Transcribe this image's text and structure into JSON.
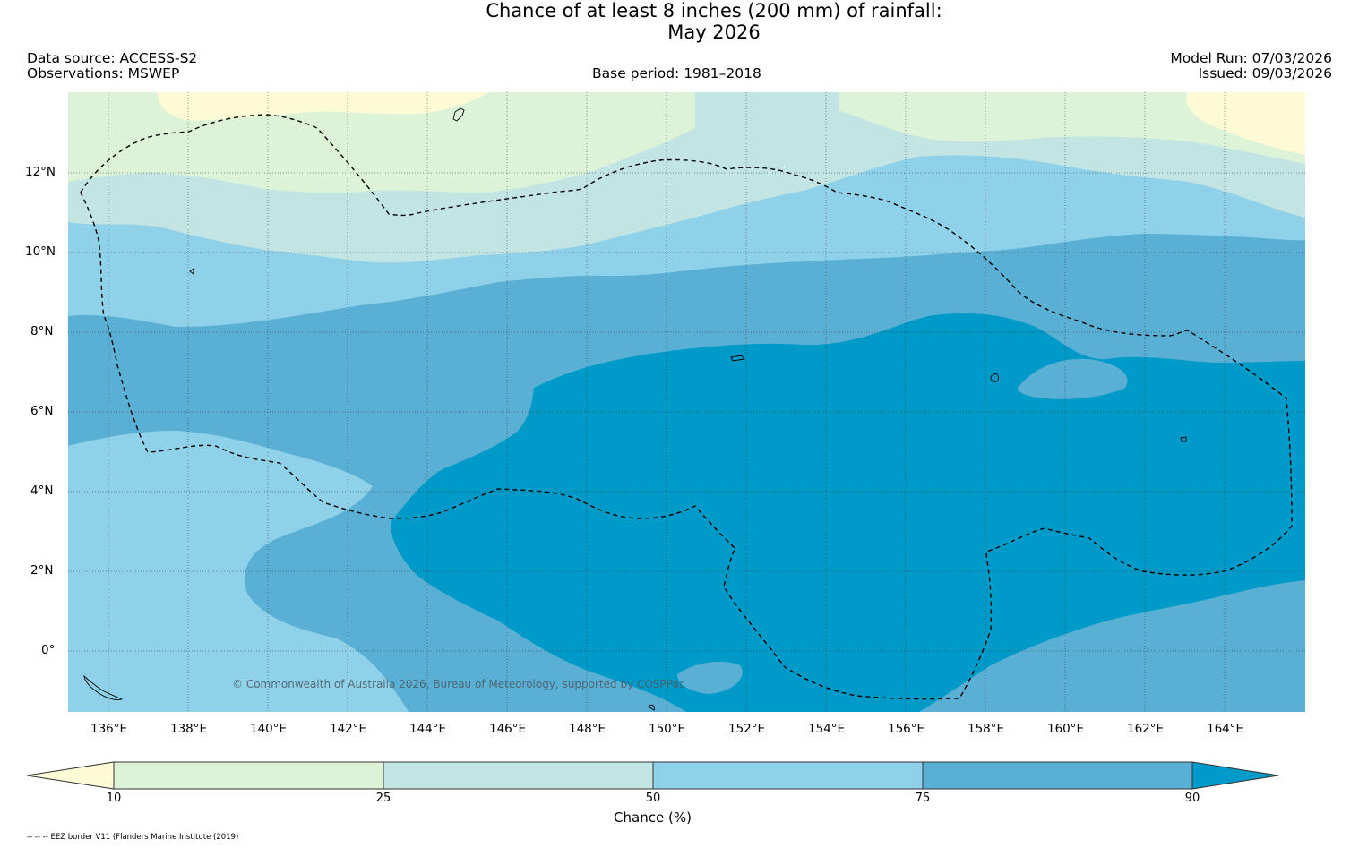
{
  "title": {
    "line1": "Chance of at least 8 inches (200  mm) of rainfall:",
    "line2": "May 2026"
  },
  "header": {
    "data_source": "Data source: ACCESS-S2",
    "observations": "Observations: MSWEP",
    "base_period": "Base period: 1981–2018",
    "model_run": "Model Run: 07/03/2026",
    "issued": "Issued: 09/03/2026"
  },
  "map": {
    "copyright": "© Commonwealth of Australia 2026, Bureau of Meteorology, supported by COSPPac",
    "lon_labels": [
      "136°E",
      "138°E",
      "140°E",
      "142°E",
      "144°E",
      "146°E",
      "148°E",
      "150°E",
      "152°E",
      "154°E",
      "156°E",
      "158°E",
      "160°E",
      "162°E",
      "164°E"
    ],
    "lat_labels": [
      "12°N",
      "10°N",
      "8°N",
      "6°N",
      "4°N",
      "2°N",
      "0°"
    ],
    "lon_range": [
      135.0,
      166.1
    ],
    "lat_range": [
      -1.5,
      14.1
    ]
  },
  "colorbar": {
    "label": "Chance (%)",
    "ticks": [
      "10",
      "25",
      "50",
      "75",
      "90"
    ],
    "colors": [
      "#fdfbd6",
      "#ddf3d8",
      "#c2e4e3",
      "#8fd1e8",
      "#5ab0d4",
      "#009ac8"
    ]
  },
  "footnote": "-- -- -- EEZ border V11 (Flanders Marine Institute (2019)"
}
